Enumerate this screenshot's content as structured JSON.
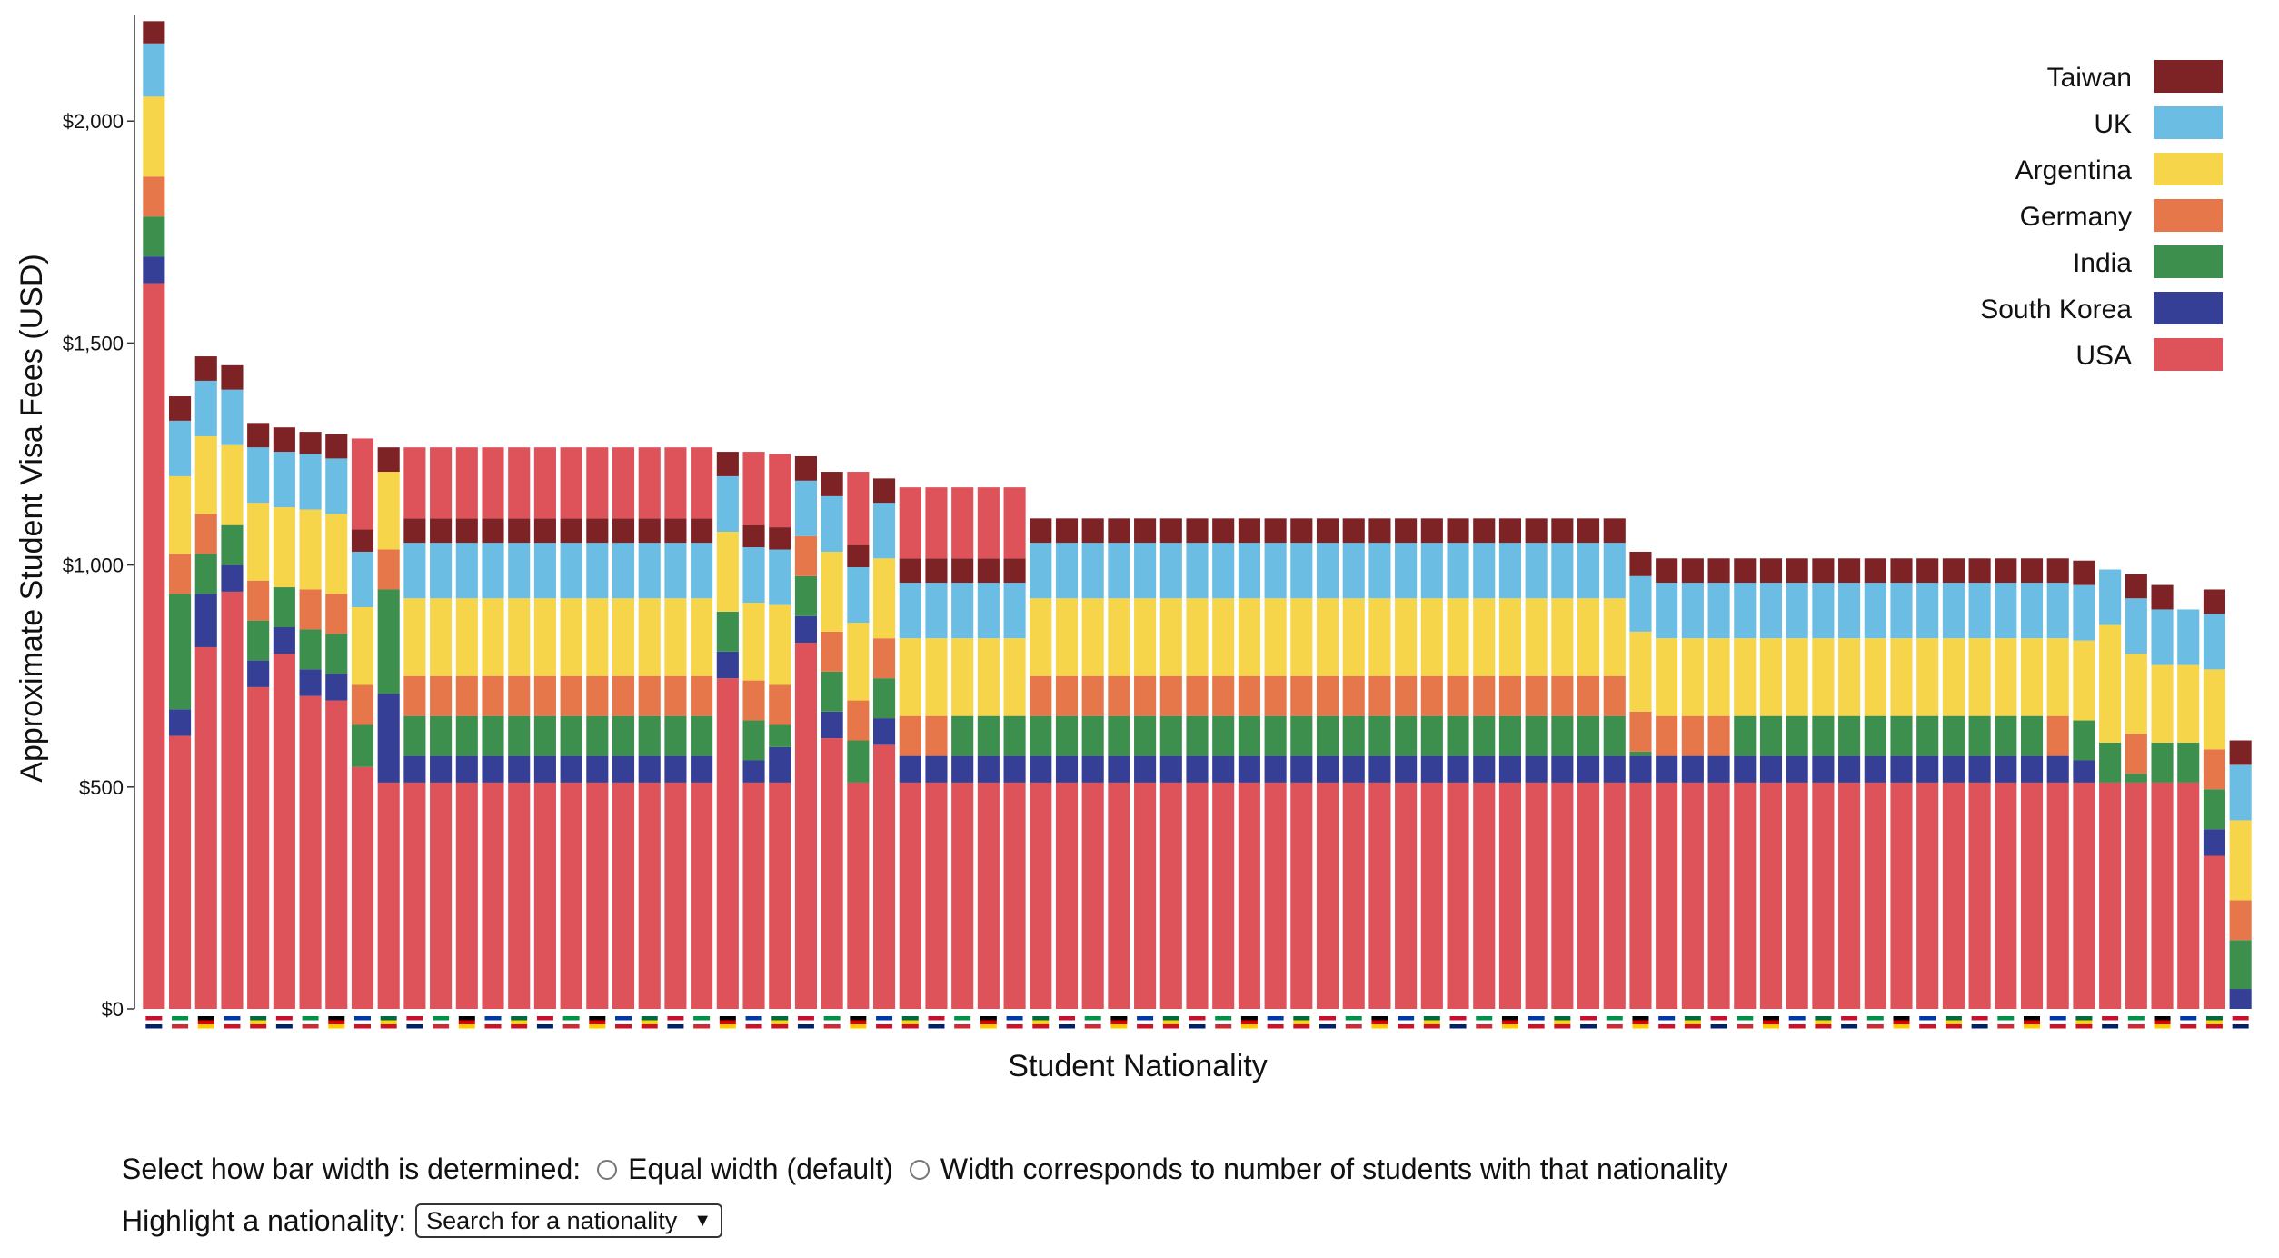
{
  "chart_data": {
    "type": "bar",
    "stacked": true,
    "xlabel": "Student Nationality",
    "ylabel": "Approximate Student Visa Fees (USD)",
    "ylim": [
      0,
      2240
    ],
    "yticks": [
      0,
      500,
      1000,
      1500,
      2000
    ],
    "ytick_labels": [
      "$0",
      "$500",
      "$1,000",
      "$1,500",
      "$2,000"
    ],
    "legend_position": "top-right",
    "stack_order": [
      "USA",
      "South Korea",
      "India",
      "Germany",
      "Argentina",
      "UK",
      "Taiwan"
    ],
    "legend": [
      {
        "name": "Taiwan",
        "color": "#7d2225"
      },
      {
        "name": "UK",
        "color": "#6bbde3"
      },
      {
        "name": "Argentina",
        "color": "#f7d54a"
      },
      {
        "name": "Germany",
        "color": "#e5774a"
      },
      {
        "name": "India",
        "color": "#3d8f4e"
      },
      {
        "name": "South Korea",
        "color": "#343f95"
      },
      {
        "name": "USA",
        "color": "#de525a"
      }
    ],
    "bars": [
      {
        "USA": 1635,
        "South Korea": 60,
        "India": 90,
        "Germany": 90,
        "Argentina": 180,
        "UK": 120,
        "Taiwan": 50
      },
      {
        "USA": 615,
        "South Korea": 60,
        "India": 260,
        "Germany": 90,
        "Argentina": 175,
        "UK": 125,
        "Taiwan": 55
      },
      {
        "USA": 815,
        "South Korea": 120,
        "India": 90,
        "Germany": 90,
        "Argentina": 175,
        "UK": 125,
        "Taiwan": 55
      },
      {
        "USA": 940,
        "South Korea": 60,
        "India": 90,
        "Germany": 0,
        "Argentina": 180,
        "UK": 125,
        "Taiwan": 55
      },
      {
        "USA": 725,
        "South Korea": 60,
        "India": 90,
        "Germany": 90,
        "Argentina": 175,
        "UK": 125,
        "Taiwan": 55
      },
      {
        "USA": 800,
        "South Korea": 60,
        "India": 90,
        "Germany": 0,
        "Argentina": 180,
        "UK": 125,
        "Taiwan": 55
      },
      {
        "USA": 705,
        "South Korea": 60,
        "India": 90,
        "Germany": 90,
        "Argentina": 180,
        "UK": 125,
        "Taiwan": 50
      },
      {
        "USA": 695,
        "South Korea": 60,
        "India": 90,
        "Germany": 90,
        "Argentina": 180,
        "UK": 125,
        "Taiwan": 55
      },
      {
        "USA": 545,
        "South Korea": 0,
        "India": 95,
        "Germany": 90,
        "Argentina": 175,
        "UK": 125,
        "Taiwan": 50,
        "USA_top": 205
      },
      {
        "USA": 510,
        "South Korea": 200,
        "India": 235,
        "Germany": 90,
        "Argentina": 175,
        "UK": 0,
        "Taiwan": 55
      },
      {
        "USA": 510,
        "South Korea": 60,
        "India": 90,
        "Germany": 90,
        "Argentina": 175,
        "UK": 125,
        "Taiwan": 55,
        "USA_top": 160
      },
      {
        "USA": 510,
        "South Korea": 60,
        "India": 90,
        "Germany": 90,
        "Argentina": 175,
        "UK": 125,
        "Taiwan": 55,
        "USA_top": 160
      },
      {
        "USA": 510,
        "South Korea": 60,
        "India": 90,
        "Germany": 90,
        "Argentina": 175,
        "UK": 125,
        "Taiwan": 55,
        "USA_top": 160
      },
      {
        "USA": 510,
        "South Korea": 60,
        "India": 90,
        "Germany": 90,
        "Argentina": 175,
        "UK": 125,
        "Taiwan": 55,
        "USA_top": 160
      },
      {
        "USA": 510,
        "South Korea": 60,
        "India": 90,
        "Germany": 90,
        "Argentina": 175,
        "UK": 125,
        "Taiwan": 55,
        "USA_top": 160
      },
      {
        "USA": 510,
        "South Korea": 60,
        "India": 90,
        "Germany": 90,
        "Argentina": 175,
        "UK": 125,
        "Taiwan": 55,
        "USA_top": 160
      },
      {
        "USA": 510,
        "South Korea": 60,
        "India": 90,
        "Germany": 90,
        "Argentina": 175,
        "UK": 125,
        "Taiwan": 55,
        "USA_top": 160
      },
      {
        "USA": 510,
        "South Korea": 60,
        "India": 90,
        "Germany": 90,
        "Argentina": 175,
        "UK": 125,
        "Taiwan": 55,
        "USA_top": 160
      },
      {
        "USA": 510,
        "South Korea": 60,
        "India": 90,
        "Germany": 90,
        "Argentina": 175,
        "UK": 125,
        "Taiwan": 55,
        "USA_top": 160
      },
      {
        "USA": 510,
        "South Korea": 60,
        "India": 90,
        "Germany": 90,
        "Argentina": 175,
        "UK": 125,
        "Taiwan": 55,
        "USA_top": 160
      },
      {
        "USA": 510,
        "South Korea": 60,
        "India": 90,
        "Germany": 90,
        "Argentina": 175,
        "UK": 125,
        "Taiwan": 55,
        "USA_top": 160
      },
      {
        "USA": 510,
        "South Korea": 60,
        "India": 90,
        "Germany": 90,
        "Argentina": 175,
        "UK": 125,
        "Taiwan": 55,
        "USA_top": 160
      },
      {
        "USA": 745,
        "South Korea": 60,
        "India": 90,
        "Germany": 0,
        "Argentina": 180,
        "UK": 125,
        "Taiwan": 55
      },
      {
        "USA": 510,
        "South Korea": 50,
        "India": 90,
        "Germany": 90,
        "Argentina": 175,
        "UK": 125,
        "Taiwan": 50,
        "USA_top": 165
      },
      {
        "USA": 510,
        "South Korea": 80,
        "India": 50,
        "Germany": 90,
        "Argentina": 180,
        "UK": 125,
        "Taiwan": 50,
        "USA_top": 165
      },
      {
        "USA": 825,
        "South Korea": 60,
        "India": 90,
        "Germany": 90,
        "Argentina": 0,
        "UK": 125,
        "Taiwan": 55
      },
      {
        "USA": 610,
        "South Korea": 60,
        "India": 90,
        "Germany": 90,
        "Argentina": 180,
        "UK": 125,
        "Taiwan": 55
      },
      {
        "USA": 510,
        "South Korea": 0,
        "India": 95,
        "Germany": 90,
        "Argentina": 175,
        "UK": 125,
        "Taiwan": 50,
        "USA_top": 165
      },
      {
        "USA": 595,
        "South Korea": 60,
        "India": 90,
        "Germany": 90,
        "Argentina": 180,
        "UK": 125,
        "Taiwan": 55
      },
      {
        "USA": 510,
        "South Korea": 60,
        "India": 0,
        "Germany": 90,
        "Argentina": 175,
        "UK": 125,
        "Taiwan": 55,
        "USA_top": 160
      },
      {
        "USA": 510,
        "South Korea": 60,
        "India": 0,
        "Germany": 90,
        "Argentina": 175,
        "UK": 125,
        "Taiwan": 55,
        "USA_top": 160
      },
      {
        "USA": 510,
        "South Korea": 60,
        "India": 90,
        "Germany": 0,
        "Argentina": 175,
        "UK": 125,
        "Taiwan": 55,
        "USA_top": 160
      },
      {
        "USA": 510,
        "South Korea": 60,
        "India": 90,
        "Germany": 0,
        "Argentina": 175,
        "UK": 125,
        "Taiwan": 55,
        "USA_top": 160
      },
      {
        "USA": 510,
        "South Korea": 60,
        "India": 90,
        "Germany": 0,
        "Argentina": 175,
        "UK": 125,
        "Taiwan": 55,
        "USA_top": 160
      },
      {
        "USA": 510,
        "South Korea": 60,
        "India": 90,
        "Germany": 90,
        "Argentina": 175,
        "UK": 125,
        "Taiwan": 55
      },
      {
        "USA": 510,
        "South Korea": 60,
        "India": 90,
        "Germany": 90,
        "Argentina": 175,
        "UK": 125,
        "Taiwan": 55
      },
      {
        "USA": 510,
        "South Korea": 60,
        "India": 90,
        "Germany": 90,
        "Argentina": 175,
        "UK": 125,
        "Taiwan": 55
      },
      {
        "USA": 510,
        "South Korea": 60,
        "India": 90,
        "Germany": 90,
        "Argentina": 175,
        "UK": 125,
        "Taiwan": 55
      },
      {
        "USA": 510,
        "South Korea": 60,
        "India": 90,
        "Germany": 90,
        "Argentina": 175,
        "UK": 125,
        "Taiwan": 55
      },
      {
        "USA": 510,
        "South Korea": 60,
        "India": 90,
        "Germany": 90,
        "Argentina": 175,
        "UK": 125,
        "Taiwan": 55
      },
      {
        "USA": 510,
        "South Korea": 60,
        "India": 90,
        "Germany": 90,
        "Argentina": 175,
        "UK": 125,
        "Taiwan": 55
      },
      {
        "USA": 510,
        "South Korea": 60,
        "India": 90,
        "Germany": 90,
        "Argentina": 175,
        "UK": 125,
        "Taiwan": 55
      },
      {
        "USA": 510,
        "South Korea": 60,
        "India": 90,
        "Germany": 90,
        "Argentina": 175,
        "UK": 125,
        "Taiwan": 55
      },
      {
        "USA": 510,
        "South Korea": 60,
        "India": 90,
        "Germany": 90,
        "Argentina": 175,
        "UK": 125,
        "Taiwan": 55
      },
      {
        "USA": 510,
        "South Korea": 60,
        "India": 90,
        "Germany": 90,
        "Argentina": 175,
        "UK": 125,
        "Taiwan": 55
      },
      {
        "USA": 510,
        "South Korea": 60,
        "India": 90,
        "Germany": 90,
        "Argentina": 175,
        "UK": 125,
        "Taiwan": 55
      },
      {
        "USA": 510,
        "South Korea": 60,
        "India": 90,
        "Germany": 90,
        "Argentina": 175,
        "UK": 125,
        "Taiwan": 55
      },
      {
        "USA": 510,
        "South Korea": 60,
        "India": 90,
        "Germany": 90,
        "Argentina": 175,
        "UK": 125,
        "Taiwan": 55
      },
      {
        "USA": 510,
        "South Korea": 60,
        "India": 90,
        "Germany": 90,
        "Argentina": 175,
        "UK": 125,
        "Taiwan": 55
      },
      {
        "USA": 510,
        "South Korea": 60,
        "India": 90,
        "Germany": 90,
        "Argentina": 175,
        "UK": 125,
        "Taiwan": 55
      },
      {
        "USA": 510,
        "South Korea": 60,
        "India": 90,
        "Germany": 90,
        "Argentina": 175,
        "UK": 125,
        "Taiwan": 55
      },
      {
        "USA": 510,
        "South Korea": 60,
        "India": 90,
        "Germany": 90,
        "Argentina": 175,
        "UK": 125,
        "Taiwan": 55
      },
      {
        "USA": 510,
        "South Korea": 60,
        "India": 90,
        "Germany": 90,
        "Argentina": 175,
        "UK": 125,
        "Taiwan": 55
      },
      {
        "USA": 510,
        "South Korea": 60,
        "India": 90,
        "Germany": 90,
        "Argentina": 175,
        "UK": 125,
        "Taiwan": 55
      },
      {
        "USA": 510,
        "South Korea": 60,
        "India": 90,
        "Germany": 90,
        "Argentina": 175,
        "UK": 125,
        "Taiwan": 55
      },
      {
        "USA": 510,
        "South Korea": 60,
        "India": 90,
        "Germany": 90,
        "Argentina": 175,
        "UK": 125,
        "Taiwan": 55
      },
      {
        "USA": 510,
        "South Korea": 60,
        "India": 90,
        "Germany": 90,
        "Argentina": 175,
        "UK": 125,
        "Taiwan": 55
      },
      {
        "USA": 510,
        "South Korea": 60,
        "India": 10,
        "Germany": 90,
        "Argentina": 180,
        "UK": 125,
        "Taiwan": 55
      },
      {
        "USA": 510,
        "South Korea": 60,
        "India": 0,
        "Germany": 90,
        "Argentina": 175,
        "UK": 125,
        "Taiwan": 55
      },
      {
        "USA": 510,
        "South Korea": 60,
        "India": 0,
        "Germany": 90,
        "Argentina": 175,
        "UK": 125,
        "Taiwan": 55
      },
      {
        "USA": 510,
        "South Korea": 60,
        "India": 0,
        "Germany": 90,
        "Argentina": 175,
        "UK": 125,
        "Taiwan": 55
      },
      {
        "USA": 510,
        "South Korea": 60,
        "India": 90,
        "Germany": 0,
        "Argentina": 175,
        "UK": 125,
        "Taiwan": 55
      },
      {
        "USA": 510,
        "South Korea": 60,
        "India": 90,
        "Germany": 0,
        "Argentina": 175,
        "UK": 125,
        "Taiwan": 55
      },
      {
        "USA": 510,
        "South Korea": 60,
        "India": 90,
        "Germany": 0,
        "Argentina": 175,
        "UK": 125,
        "Taiwan": 55
      },
      {
        "USA": 510,
        "South Korea": 60,
        "India": 90,
        "Germany": 0,
        "Argentina": 175,
        "UK": 125,
        "Taiwan": 55
      },
      {
        "USA": 510,
        "South Korea": 60,
        "India": 90,
        "Germany": 0,
        "Argentina": 175,
        "UK": 125,
        "Taiwan": 55
      },
      {
        "USA": 510,
        "South Korea": 60,
        "India": 90,
        "Germany": 0,
        "Argentina": 175,
        "UK": 125,
        "Taiwan": 55
      },
      {
        "USA": 510,
        "South Korea": 60,
        "India": 90,
        "Germany": 0,
        "Argentina": 175,
        "UK": 125,
        "Taiwan": 55
      },
      {
        "USA": 510,
        "South Korea": 60,
        "India": 90,
        "Germany": 0,
        "Argentina": 175,
        "UK": 125,
        "Taiwan": 55
      },
      {
        "USA": 510,
        "South Korea": 60,
        "India": 90,
        "Germany": 0,
        "Argentina": 175,
        "UK": 125,
        "Taiwan": 55
      },
      {
        "USA": 510,
        "South Korea": 60,
        "India": 90,
        "Germany": 0,
        "Argentina": 175,
        "UK": 125,
        "Taiwan": 55
      },
      {
        "USA": 510,
        "South Korea": 60,
        "India": 90,
        "Germany": 0,
        "Argentina": 175,
        "UK": 125,
        "Taiwan": 55
      },
      {
        "USA": 510,
        "South Korea": 60,
        "India": 90,
        "Germany": 0,
        "Argentina": 175,
        "UK": 125,
        "Taiwan": 55
      },
      {
        "USA": 510,
        "South Korea": 60,
        "India": 0,
        "Germany": 90,
        "Argentina": 175,
        "UK": 125,
        "Taiwan": 55
      },
      {
        "USA": 510,
        "South Korea": 50,
        "India": 90,
        "Germany": 0,
        "Argentina": 180,
        "UK": 125,
        "Taiwan": 55
      },
      {
        "USA": 510,
        "South Korea": 0,
        "India": 90,
        "Germany": 0,
        "Argentina": 265,
        "UK": 125,
        "Taiwan": 0
      },
      {
        "USA": 510,
        "South Korea": 0,
        "India": 20,
        "Germany": 90,
        "Argentina": 180,
        "UK": 125,
        "Taiwan": 55
      },
      {
        "USA": 510,
        "South Korea": 0,
        "India": 90,
        "Germany": 0,
        "Argentina": 175,
        "UK": 125,
        "Taiwan": 55
      },
      {
        "USA": 510,
        "South Korea": 0,
        "India": 90,
        "Germany": 0,
        "Argentina": 175,
        "UK": 125,
        "Taiwan": 0
      },
      {
        "USA": 345,
        "South Korea": 60,
        "India": 90,
        "Germany": 90,
        "Argentina": 180,
        "UK": 125,
        "Taiwan": 55
      },
      {
        "USA": 0,
        "South Korea": 45,
        "India": 110,
        "Germany": 90,
        "Argentina": 180,
        "UK": 125,
        "Taiwan": 55
      }
    ]
  },
  "controls": {
    "width_label": "Select how bar width is determined:",
    "option_equal": "Equal width (default)",
    "option_students": "Width corresponds to number of students with that nationality",
    "highlight_label": "Highlight a nationality:",
    "select_value": "Search for a nationality"
  },
  "icons": {
    "flag": "country-flag-icon",
    "radio": "radio-button",
    "select_arrow": "chevron-down-icon"
  }
}
